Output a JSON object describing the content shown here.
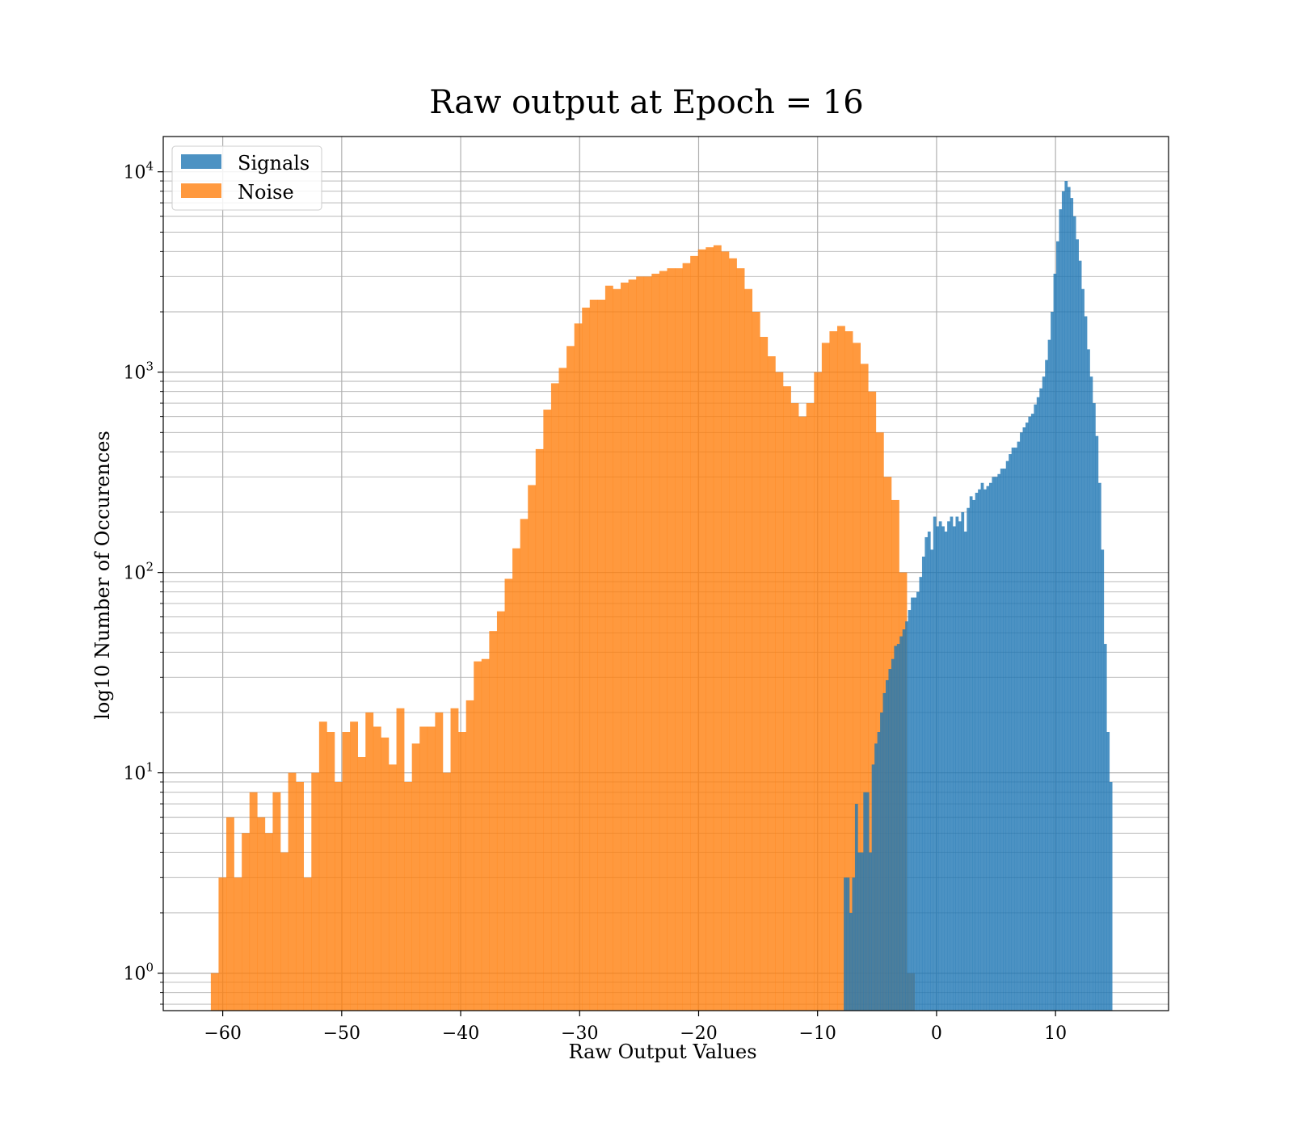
{
  "chart_data": {
    "type": "bar",
    "title": "Raw output at Epoch = 16",
    "xlabel": "Raw Output Values",
    "ylabel": "log10 Number of Occurences",
    "xlim": [
      -65,
      19.5
    ],
    "ylim": [
      0.65,
      15000
    ],
    "yscale": "log",
    "grid": true,
    "legend_position": "top-left",
    "x_ticks": [
      -60,
      -50,
      -40,
      -30,
      -20,
      -10,
      0,
      10
    ],
    "x_tick_labels": [
      "−60",
      "−50",
      "−40",
      "−30",
      "−20",
      "−10",
      "0",
      "10"
    ],
    "y_ticks": [
      {
        "value": 1,
        "base": "10",
        "exp": "0"
      },
      {
        "value": 10,
        "base": "10",
        "exp": "1"
      },
      {
        "value": 100,
        "base": "10",
        "exp": "2"
      },
      {
        "value": 1000,
        "base": "10",
        "exp": "3"
      },
      {
        "value": 10000,
        "base": "10",
        "exp": "4"
      }
    ],
    "series": [
      {
        "name": "Noise",
        "color": "#ff7f0e",
        "opacity": 0.8,
        "bin_start": -61.0,
        "bin_width": 0.65,
        "values": [
          1,
          3,
          6,
          3,
          5,
          8,
          6,
          5,
          8,
          4,
          10,
          9,
          3,
          10,
          18,
          16,
          9,
          16,
          18,
          12,
          20,
          17,
          15,
          11,
          21,
          9,
          14,
          17,
          17,
          20,
          10,
          21,
          16,
          23,
          36,
          37,
          51,
          64,
          93,
          132,
          185,
          273,
          413,
          650,
          880,
          1050,
          1350,
          1750,
          2100,
          2300,
          2300,
          2700,
          2600,
          2800,
          2900,
          3000,
          3000,
          3100,
          3200,
          3300,
          3300,
          3500,
          3800,
          4100,
          4200,
          4300,
          4000,
          3700,
          3300,
          2600,
          2000,
          1500,
          1200,
          1000,
          850,
          700,
          600,
          700,
          1000,
          1400,
          1600,
          1700,
          1600,
          1400,
          1100,
          800,
          500,
          300,
          230,
          100,
          1
        ]
      },
      {
        "name": "Signals",
        "color": "#1f77b4",
        "opacity": 0.8,
        "bin_start": -7.8,
        "bin_width": 0.235,
        "values": [
          3,
          3,
          2,
          3,
          7,
          4,
          4,
          8,
          8,
          4,
          11,
          14,
          16,
          20,
          25,
          29,
          33,
          37,
          43,
          44,
          48,
          52,
          57,
          65,
          75,
          75,
          80,
          95,
          120,
          150,
          160,
          130,
          190,
          170,
          180,
          170,
          160,
          180,
          190,
          170,
          190,
          180,
          200,
          160,
          210,
          240,
          230,
          250,
          260,
          280,
          260,
          270,
          280,
          300,
          300,
          310,
          330,
          330,
          360,
          390,
          420,
          420,
          450,
          500,
          530,
          560,
          600,
          620,
          690,
          750,
          830,
          950,
          1150,
          1450,
          2000,
          3100,
          4500,
          6500,
          8000,
          9000,
          8400,
          7400,
          6000,
          4600,
          3600,
          2600,
          1900,
          1300,
          950,
          700,
          480,
          280,
          130,
          44,
          16,
          9
        ]
      }
    ]
  },
  "legend": {
    "items": [
      {
        "label": "Signals",
        "color": "#1f77b4"
      },
      {
        "label": "Noise",
        "color": "#ff7f0e"
      }
    ]
  }
}
